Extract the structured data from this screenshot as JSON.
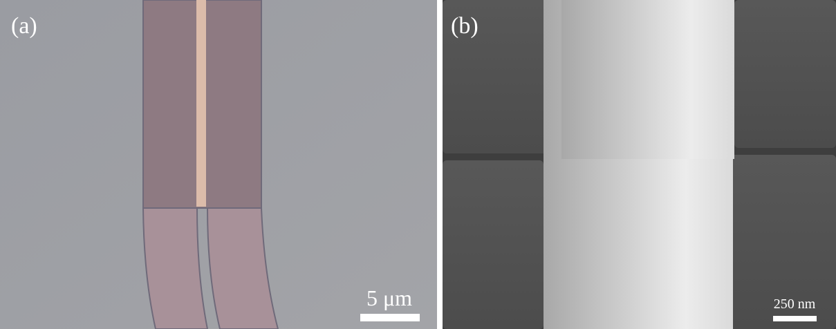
{
  "panels": [
    {
      "label": "(a)",
      "scale_label": "5 μm"
    },
    {
      "label": "(b)",
      "scale_label": "250 nm"
    }
  ]
}
